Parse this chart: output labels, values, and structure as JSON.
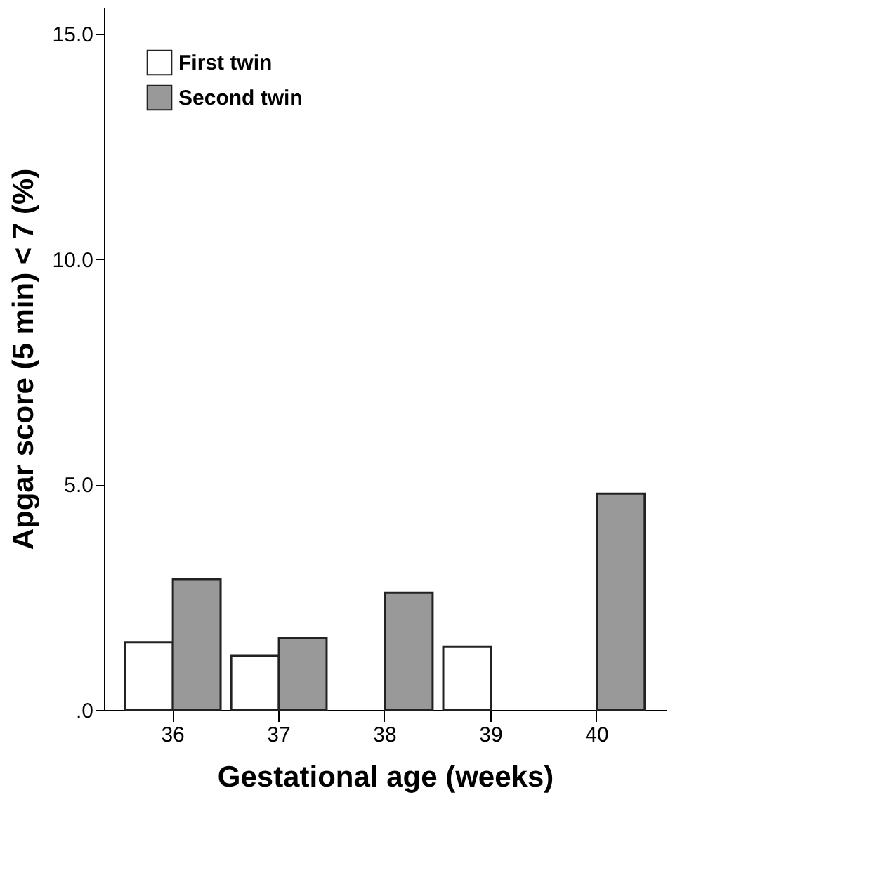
{
  "chart_data": {
    "type": "bar",
    "xlabel": "Gestational age (weeks)",
    "ylabel": "Apgar score (5 min) < 7 (%)",
    "categories": [
      "36",
      "37",
      "38",
      "39",
      "40"
    ],
    "series": [
      {
        "name": "First twin",
        "color": "#ffffff",
        "values": [
          1.5,
          1.2,
          null,
          1.4,
          null
        ]
      },
      {
        "name": "Second twin",
        "color": "#999999",
        "values": [
          2.9,
          1.6,
          2.6,
          null,
          4.8
        ]
      }
    ],
    "ylim": [
      0,
      15.6
    ],
    "yticks": [
      {
        "value": 0,
        "label": ".0"
      },
      {
        "value": 5,
        "label": "5.0"
      },
      {
        "value": 10,
        "label": "10.0"
      },
      {
        "value": 15,
        "label": "15.0"
      }
    ],
    "grid": false,
    "legend": "top left"
  }
}
